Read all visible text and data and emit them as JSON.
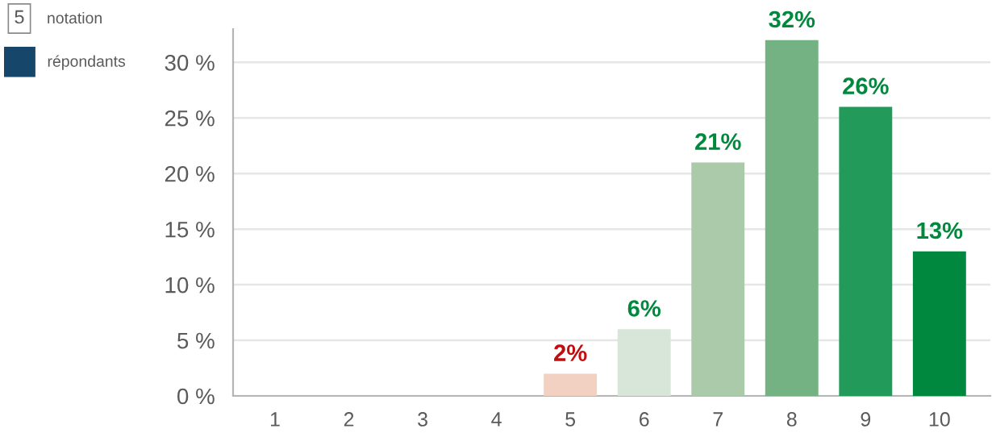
{
  "chart_data": {
    "type": "bar",
    "categories": [
      "1",
      "2",
      "3",
      "4",
      "5",
      "6",
      "7",
      "8",
      "9",
      "10"
    ],
    "xlabel": "notation",
    "annotations": [
      "5"
    ],
    "series": [
      {
        "name": "répondants",
        "color": "#17466b",
        "values": [
          0,
          0,
          0,
          0,
          2,
          6,
          21,
          32,
          26,
          13
        ],
        "colors": [
          null,
          null,
          null,
          null,
          "#f2d0c2",
          "#d7e6d8",
          "#abcaa9",
          "#74b283",
          "#229a5a",
          "#00883f"
        ],
        "value_labels": [
          null,
          null,
          null,
          null,
          "2%",
          "6%",
          "21%",
          "32%",
          "26%",
          "13%"
        ]
      }
    ],
    "ylim": [
      0,
      33
    ],
    "yticks": [
      {
        "value": 0,
        "label": "0 %"
      },
      {
        "value": 5,
        "label": "5 %"
      },
      {
        "value": 10,
        "label": "10 %"
      },
      {
        "value": 15,
        "label": "15 %"
      },
      {
        "value": 20,
        "label": "20 %"
      },
      {
        "value": 25,
        "label": "25 %"
      },
      {
        "value": 30,
        "label": "30 %"
      }
    ],
    "grid": "y",
    "legend": "top left"
  }
}
